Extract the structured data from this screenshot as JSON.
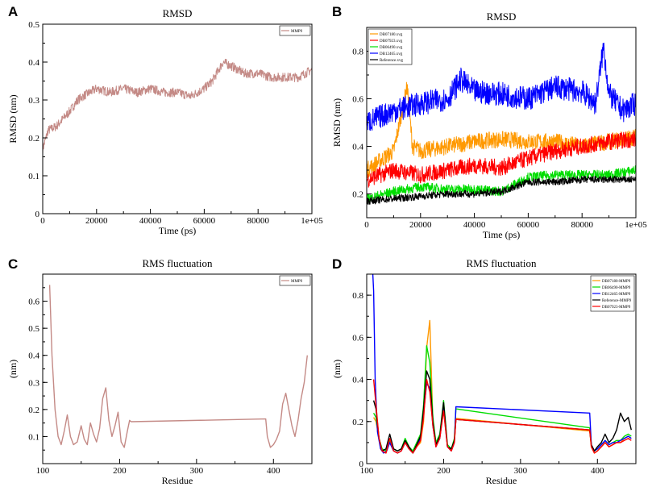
{
  "chart_data": [
    {
      "panel": "A",
      "type": "line",
      "title": "RMSD",
      "xlabel": "Time (ps)",
      "ylabel": "RMSD (nm)",
      "xlim": [
        0,
        100000
      ],
      "ylim": [
        0,
        0.5
      ],
      "xticks": [
        0,
        20000,
        40000,
        60000,
        80000,
        100000
      ],
      "xtick_labels": [
        "0",
        "20000",
        "40000",
        "60000",
        "80000",
        "1e+05"
      ],
      "yticks": [
        0,
        0.1,
        0.2,
        0.3,
        0.4,
        0.5
      ],
      "ytick_labels": [
        "0",
        "0.1",
        "0.2",
        "0.3",
        "0.4",
        "0.5"
      ],
      "legend_position": "top-right",
      "series": [
        {
          "name": "MMP9",
          "color": "#c48a86",
          "noise": 0.012,
          "x": [
            0,
            2000,
            5000,
            10000,
            13000,
            15000,
            20000,
            25000,
            30000,
            35000,
            40000,
            45000,
            50000,
            55000,
            60000,
            63000,
            67000,
            70000,
            75000,
            80000,
            85000,
            90000,
            95000,
            100000
          ],
          "y": [
            0.17,
            0.22,
            0.23,
            0.27,
            0.3,
            0.31,
            0.33,
            0.32,
            0.33,
            0.32,
            0.33,
            0.32,
            0.32,
            0.31,
            0.33,
            0.35,
            0.4,
            0.39,
            0.37,
            0.37,
            0.36,
            0.36,
            0.36,
            0.38
          ]
        }
      ]
    },
    {
      "panel": "B",
      "type": "line",
      "title": "RMSD",
      "xlabel": "Time (ps)",
      "ylabel": "RMSD (nm)",
      "xlim": [
        0,
        100000
      ],
      "ylim": [
        0.1,
        0.9
      ],
      "xticks": [
        0,
        20000,
        40000,
        60000,
        80000,
        100000
      ],
      "xtick_labels": [
        "0",
        "20000",
        "40000",
        "60000",
        "80000",
        "1e+05"
      ],
      "yticks": [
        0.2,
        0.4,
        0.6,
        0.8
      ],
      "ytick_labels": [
        "0.2",
        "0.4",
        "0.6",
        "0.8"
      ],
      "legend_position": "top-left",
      "series": [
        {
          "name": "DB07180.xvg",
          "color": "#ff9900",
          "noise": 0.035,
          "x": [
            0,
            10000,
            15000,
            17000,
            20000,
            30000,
            40000,
            50000,
            60000,
            70000,
            80000,
            90000,
            100000
          ],
          "y": [
            0.3,
            0.38,
            0.65,
            0.4,
            0.38,
            0.4,
            0.42,
            0.43,
            0.42,
            0.42,
            0.4,
            0.42,
            0.44
          ]
        },
        {
          "name": "DB07923.xvg",
          "color": "#ff0000",
          "noise": 0.035,
          "x": [
            0,
            10000,
            20000,
            30000,
            40000,
            50000,
            60000,
            70000,
            80000,
            90000,
            100000
          ],
          "y": [
            0.26,
            0.3,
            0.28,
            0.3,
            0.32,
            0.31,
            0.35,
            0.38,
            0.4,
            0.42,
            0.43
          ]
        },
        {
          "name": "DB06490.xvg",
          "color": "#00dd00",
          "noise": 0.02,
          "x": [
            0,
            10000,
            20000,
            30000,
            40000,
            50000,
            55000,
            60000,
            70000,
            80000,
            90000,
            100000
          ],
          "y": [
            0.18,
            0.21,
            0.23,
            0.22,
            0.22,
            0.21,
            0.24,
            0.27,
            0.28,
            0.28,
            0.28,
            0.3
          ]
        },
        {
          "name": "DB12465.xvg",
          "color": "#0000ff",
          "noise": 0.05,
          "x": [
            0,
            10000,
            20000,
            30000,
            35000,
            40000,
            50000,
            60000,
            70000,
            80000,
            85000,
            88000,
            90000,
            95000,
            100000
          ],
          "y": [
            0.5,
            0.55,
            0.58,
            0.6,
            0.68,
            0.63,
            0.62,
            0.6,
            0.65,
            0.63,
            0.58,
            0.82,
            0.62,
            0.55,
            0.58
          ]
        },
        {
          "name": "Reference.xvg",
          "color": "#000000",
          "noise": 0.015,
          "x": [
            0,
            10000,
            20000,
            30000,
            40000,
            50000,
            55000,
            60000,
            70000,
            80000,
            90000,
            100000
          ],
          "y": [
            0.17,
            0.18,
            0.19,
            0.2,
            0.2,
            0.21,
            0.23,
            0.25,
            0.25,
            0.26,
            0.26,
            0.26
          ]
        }
      ]
    },
    {
      "panel": "C",
      "type": "line",
      "title": "RMS fluctuation",
      "xlabel": "Residue",
      "ylabel": "(nm)",
      "xlim": [
        100,
        450
      ],
      "ylim": [
        0,
        0.7
      ],
      "xticks": [
        100,
        200,
        300,
        400
      ],
      "xtick_labels": [
        "100",
        "200",
        "300",
        "400"
      ],
      "yticks": [
        0.1,
        0.2,
        0.3,
        0.4,
        0.5,
        0.6
      ],
      "ytick_labels": [
        "0.1",
        "0.2",
        "0.3",
        "0.4",
        "0.5",
        "0.6"
      ],
      "legend_position": "top-right",
      "series": [
        {
          "name": "MMP9",
          "color": "#c48a86",
          "noise": 0,
          "x": [
            109,
            112,
            116,
            120,
            124,
            128,
            132,
            136,
            140,
            145,
            150,
            154,
            158,
            162,
            166,
            170,
            174,
            178,
            182,
            186,
            190,
            194,
            198,
            202,
            206,
            210,
            213,
            215,
            390,
            392,
            396,
            400,
            404,
            408,
            412,
            416,
            420,
            424,
            428,
            432,
            436,
            440,
            444
          ],
          "y": [
            0.66,
            0.4,
            0.2,
            0.1,
            0.07,
            0.12,
            0.18,
            0.1,
            0.07,
            0.08,
            0.14,
            0.09,
            0.07,
            0.15,
            0.11,
            0.08,
            0.13,
            0.24,
            0.28,
            0.16,
            0.1,
            0.14,
            0.19,
            0.08,
            0.06,
            0.12,
            0.16,
            0.155,
            0.165,
            0.1,
            0.06,
            0.07,
            0.09,
            0.12,
            0.22,
            0.26,
            0.2,
            0.14,
            0.1,
            0.16,
            0.24,
            0.3,
            0.4
          ]
        }
      ]
    },
    {
      "panel": "D",
      "type": "line",
      "title": "RMS fluctuation",
      "xlabel": "Residue",
      "ylabel": "(nm)",
      "xlim": [
        100,
        450
      ],
      "ylim": [
        0,
        0.9
      ],
      "xticks": [
        100,
        200,
        300,
        400
      ],
      "xtick_labels": [
        "100",
        "200",
        "300",
        "400"
      ],
      "yticks": [
        0,
        0.2,
        0.4,
        0.6,
        0.8
      ],
      "ytick_labels": [
        "0",
        "0.2",
        "0.4",
        "0.6",
        "0.8"
      ],
      "legend_position": "top-right",
      "series": [
        {
          "name": "DB07180-MMP9",
          "color": "#ff9900",
          "noise": 0,
          "x": [
            109,
            112,
            116,
            120,
            125,
            130,
            135,
            140,
            145,
            150,
            155,
            160,
            165,
            170,
            174,
            178,
            182,
            186,
            190,
            195,
            200,
            205,
            210,
            214,
            216,
            390,
            392,
            396,
            400,
            405,
            410,
            415,
            420,
            425,
            430,
            435,
            440,
            444
          ],
          "y": [
            0.22,
            0.2,
            0.12,
            0.06,
            0.05,
            0.1,
            0.06,
            0.05,
            0.06,
            0.1,
            0.07,
            0.05,
            0.08,
            0.1,
            0.2,
            0.55,
            0.68,
            0.2,
            0.08,
            0.12,
            0.28,
            0.08,
            0.06,
            0.1,
            0.215,
            0.155,
            0.08,
            0.05,
            0.06,
            0.08,
            0.1,
            0.08,
            0.09,
            0.1,
            0.1,
            0.12,
            0.13,
            0.12
          ]
        },
        {
          "name": "DB06490-MMP9",
          "color": "#00dd00",
          "noise": 0,
          "x": [
            109,
            112,
            116,
            120,
            125,
            130,
            135,
            140,
            145,
            150,
            155,
            160,
            165,
            170,
            174,
            178,
            182,
            186,
            190,
            195,
            200,
            205,
            210,
            214,
            216,
            390,
            392,
            396,
            400,
            405,
            410,
            415,
            420,
            425,
            430,
            435,
            440,
            444
          ],
          "y": [
            0.24,
            0.22,
            0.12,
            0.07,
            0.06,
            0.11,
            0.07,
            0.06,
            0.07,
            0.12,
            0.08,
            0.06,
            0.1,
            0.14,
            0.28,
            0.56,
            0.48,
            0.22,
            0.1,
            0.14,
            0.3,
            0.09,
            0.07,
            0.12,
            0.26,
            0.17,
            0.09,
            0.06,
            0.07,
            0.09,
            0.11,
            0.09,
            0.1,
            0.11,
            0.11,
            0.13,
            0.14,
            0.13
          ]
        },
        {
          "name": "DB12465-MMP9",
          "color": "#0000ff",
          "noise": 0,
          "x": [
            108,
            109,
            111,
            114,
            118,
            122,
            126,
            130,
            135,
            140,
            145,
            150,
            155,
            160,
            165,
            170,
            174,
            178,
            182,
            186,
            190,
            195,
            200,
            205,
            210,
            214,
            216,
            390,
            392,
            396,
            400,
            405,
            410,
            415,
            420,
            425,
            430,
            435,
            440,
            444
          ],
          "y": [
            0.9,
            0.82,
            0.4,
            0.15,
            0.07,
            0.05,
            0.06,
            0.1,
            0.06,
            0.05,
            0.06,
            0.1,
            0.07,
            0.05,
            0.08,
            0.12,
            0.24,
            0.38,
            0.36,
            0.18,
            0.08,
            0.12,
            0.26,
            0.08,
            0.06,
            0.1,
            0.27,
            0.24,
            0.09,
            0.06,
            0.07,
            0.09,
            0.11,
            0.09,
            0.1,
            0.1,
            0.11,
            0.12,
            0.13,
            0.12
          ]
        },
        {
          "name": "Reference-MMP9",
          "color": "#000000",
          "noise": 0,
          "x": [
            109,
            112,
            116,
            120,
            125,
            130,
            135,
            140,
            145,
            150,
            155,
            160,
            165,
            170,
            174,
            178,
            182,
            186,
            190,
            195,
            200,
            205,
            210,
            214,
            216,
            390,
            392,
            396,
            400,
            405,
            410,
            415,
            420,
            425,
            430,
            435,
            440,
            444
          ],
          "y": [
            0.3,
            0.26,
            0.12,
            0.06,
            0.07,
            0.14,
            0.07,
            0.06,
            0.07,
            0.11,
            0.08,
            0.05,
            0.09,
            0.13,
            0.26,
            0.44,
            0.4,
            0.2,
            0.09,
            0.13,
            0.29,
            0.08,
            0.07,
            0.11,
            0.21,
            0.16,
            0.09,
            0.06,
            0.08,
            0.1,
            0.14,
            0.1,
            0.12,
            0.16,
            0.24,
            0.2,
            0.22,
            0.16
          ]
        },
        {
          "name": "DB07923-MMP9",
          "color": "#ff0000",
          "noise": 0,
          "x": [
            109,
            112,
            116,
            120,
            125,
            130,
            135,
            140,
            145,
            150,
            155,
            160,
            165,
            170,
            174,
            178,
            182,
            186,
            190,
            195,
            200,
            205,
            210,
            214,
            216,
            390,
            392,
            396,
            400,
            405,
            410,
            415,
            420,
            425,
            430,
            435,
            440,
            444
          ],
          "y": [
            0.4,
            0.28,
            0.12,
            0.06,
            0.05,
            0.12,
            0.06,
            0.05,
            0.06,
            0.1,
            0.07,
            0.05,
            0.08,
            0.11,
            0.22,
            0.4,
            0.34,
            0.18,
            0.08,
            0.12,
            0.25,
            0.08,
            0.06,
            0.1,
            0.21,
            0.16,
            0.08,
            0.05,
            0.06,
            0.08,
            0.1,
            0.08,
            0.09,
            0.1,
            0.1,
            0.11,
            0.12,
            0.11
          ]
        }
      ]
    }
  ]
}
